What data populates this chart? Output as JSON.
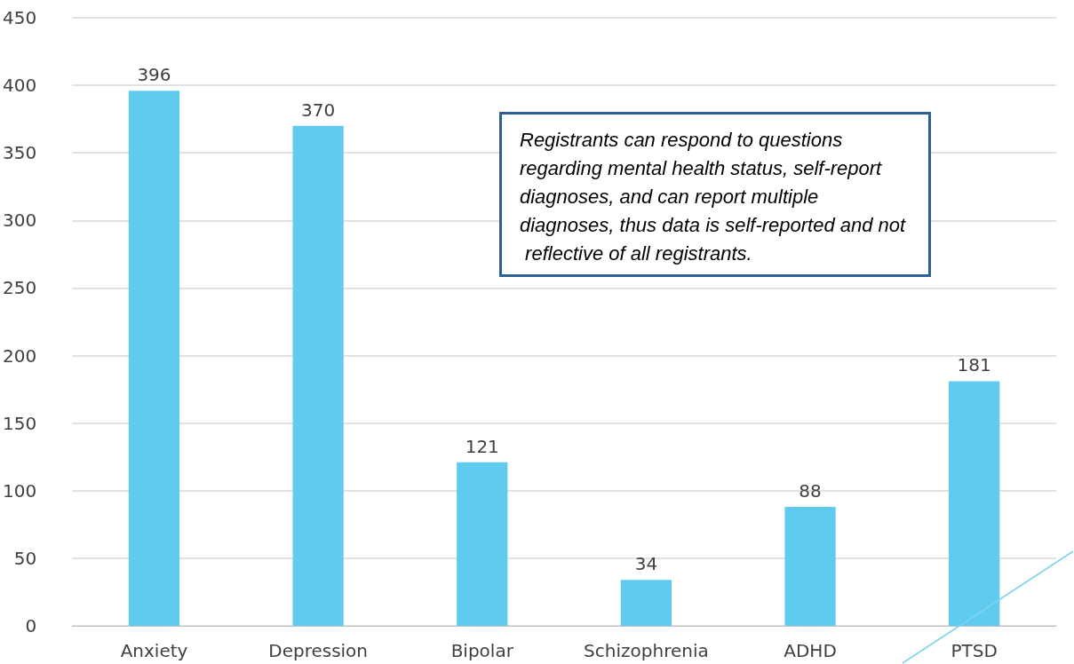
{
  "chart_data": {
    "type": "bar",
    "categories": [
      "Anxiety",
      "Depression",
      "Bipolar",
      "Schizophrenia",
      "ADHD",
      "PTSD"
    ],
    "values": [
      396,
      370,
      121,
      34,
      88,
      181
    ],
    "color": "#5ecbef",
    "ylim": [
      0,
      450
    ],
    "yticks": [
      0,
      50,
      100,
      150,
      200,
      250,
      300,
      350,
      400,
      450
    ],
    "grid": "y",
    "data_labels": true,
    "annotations": [
      "Registrants can respond to questions regarding mental health status, self-report diagnoses, and can report multiple diagnoses, thus data is self-reported and not reflective of all registrants."
    ]
  }
}
